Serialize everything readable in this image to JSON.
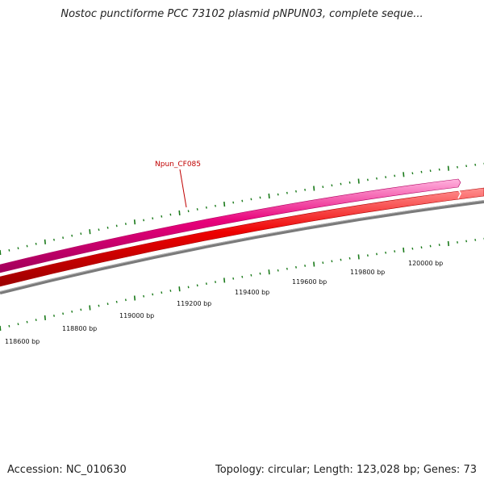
{
  "header": {
    "title": "Nostoc punctiforme PCC 73102 plasmid pNPUN03, complete seque..."
  },
  "map": {
    "gene_label": "Npun_CF085",
    "scale_labels": [
      "118600 bp",
      "118800 bp",
      "119000 bp",
      "119200 bp",
      "119400 bp",
      "119600 bp",
      "119800 bp",
      "120000 bp"
    ],
    "colors": {
      "forward_gene": "#e8007a",
      "reverse_gene": "#ee0000",
      "backbone": "#808080",
      "ticks": "#1a7a1a",
      "gene_label": "#c00000"
    }
  },
  "footer": {
    "accession": "Accession: NC_010630",
    "summary": "Topology: circular; Length: 123,028 bp; Genes: 73"
  }
}
